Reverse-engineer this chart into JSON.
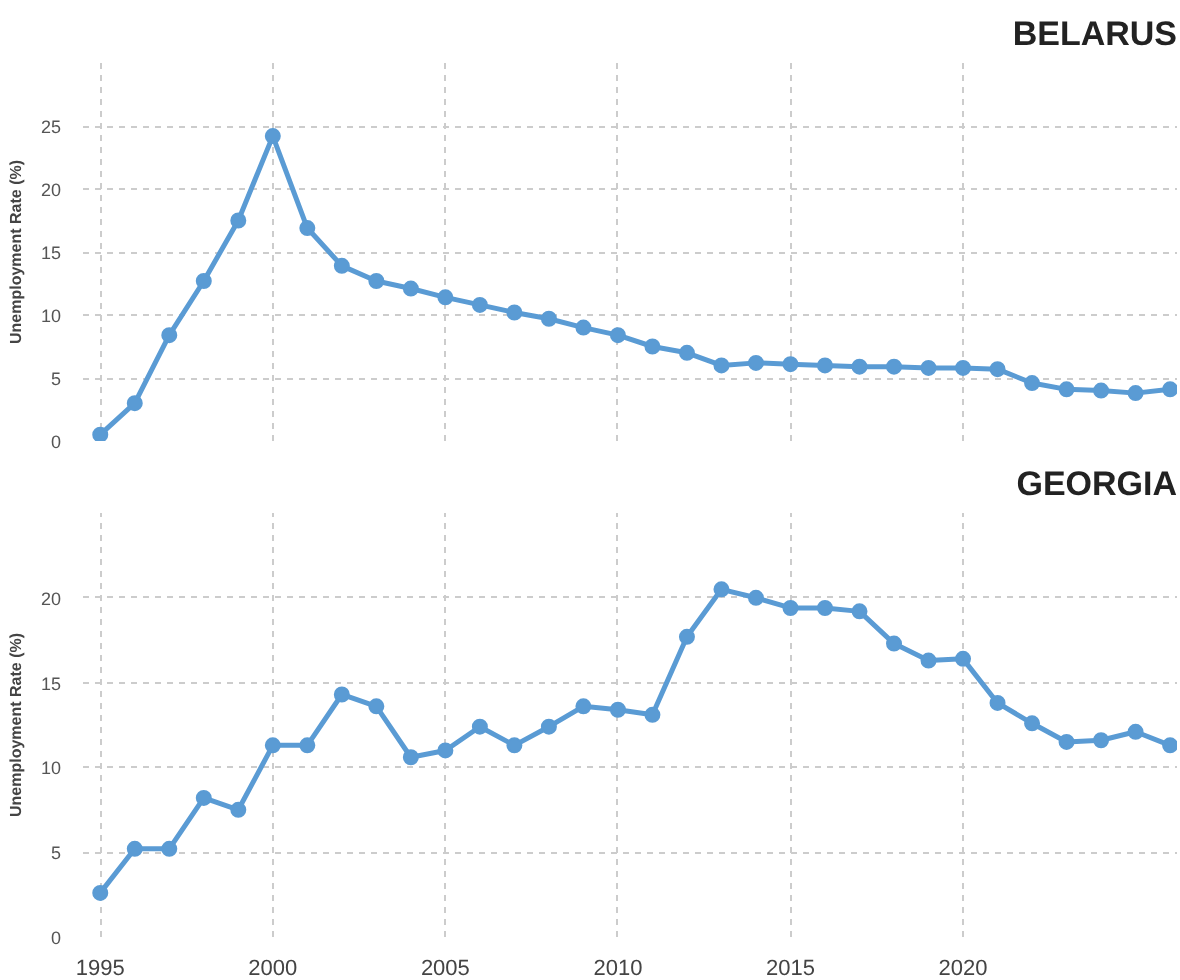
{
  "chart_data": [
    {
      "type": "line",
      "title": "BELARUS",
      "ylabel": "Unemployment Rate (%)",
      "x": [
        1995,
        1996,
        1997,
        1998,
        1999,
        2000,
        2001,
        2002,
        2003,
        2004,
        2005,
        2006,
        2007,
        2008,
        2009,
        2010,
        2011,
        2012,
        2013,
        2014,
        2015,
        2016,
        2017,
        2018,
        2019,
        2020,
        2021,
        2022,
        2023,
        2024,
        2025,
        2026
      ],
      "series": [
        {
          "color": "#5a9bd4",
          "values": [
            0.5,
            3.0,
            8.4,
            12.7,
            17.5,
            24.2,
            16.9,
            13.9,
            12.7,
            12.1,
            11.4,
            10.8,
            10.2,
            9.7,
            9.0,
            8.4,
            7.5,
            7.0,
            6.0,
            6.2,
            6.1,
            6.0,
            5.9,
            5.9,
            5.8,
            5.8,
            5.7,
            4.6,
            4.1,
            4.0,
            3.8,
            4.1
          ]
        }
      ],
      "xlim": [
        1994.5,
        2026.2
      ],
      "xticks": [
        1995,
        2000,
        2005,
        2010,
        2015,
        2020
      ],
      "ylim": [
        0,
        30
      ],
      "yticks": [
        0,
        5,
        10,
        15,
        20,
        25
      ],
      "tick_labels": "y",
      "grid": true,
      "marker": "circle",
      "line_style": "solid"
    },
    {
      "type": "line",
      "title": "GEORGIA",
      "ylabel": "Unemployment Rate (%)",
      "x": [
        1995,
        1996,
        1997,
        1998,
        1999,
        2000,
        2001,
        2002,
        2003,
        2004,
        2005,
        2006,
        2007,
        2008,
        2009,
        2010,
        2011,
        2012,
        2013,
        2014,
        2015,
        2016,
        2017,
        2018,
        2019,
        2020,
        2021,
        2022,
        2023,
        2024,
        2025,
        2026
      ],
      "series": [
        {
          "color": "#5a9bd4",
          "values": [
            2.6,
            5.2,
            5.2,
            8.2,
            7.5,
            11.3,
            11.3,
            14.3,
            13.6,
            10.6,
            11.0,
            12.4,
            11.3,
            12.4,
            13.6,
            13.4,
            13.1,
            17.7,
            20.5,
            20.0,
            19.4,
            19.4,
            19.2,
            17.3,
            16.3,
            16.4,
            13.8,
            12.6,
            11.5,
            11.6,
            12.1,
            11.3
          ]
        }
      ],
      "xlim": [
        1994.5,
        2026.2
      ],
      "xticks": [
        1995,
        2000,
        2005,
        2010,
        2015,
        2020
      ],
      "ylim": [
        0,
        25
      ],
      "yticks": [
        0,
        5,
        10,
        15,
        20
      ],
      "grid": true,
      "marker": "circle",
      "line_style": "solid"
    }
  ]
}
